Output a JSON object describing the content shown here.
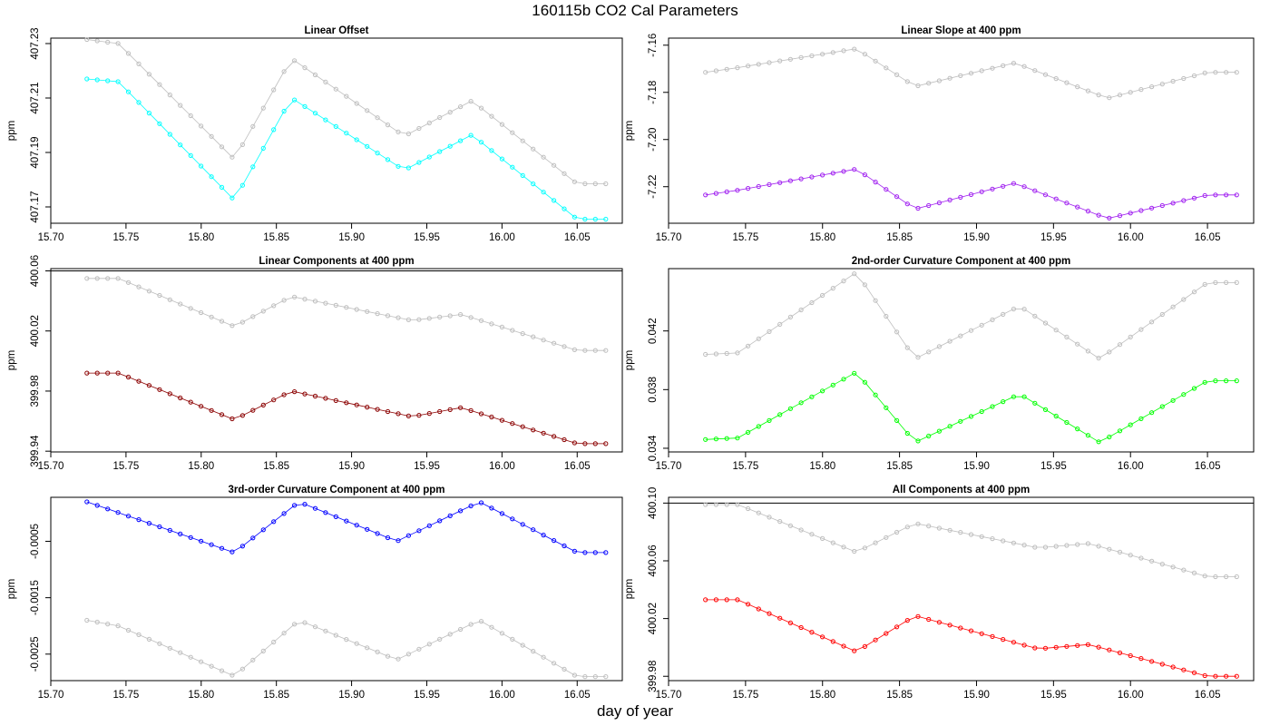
{
  "title": "160115b   CO2 Cal Parameters",
  "xlabel": "day of year",
  "chart_data": [
    {
      "type": "scatter",
      "title": "Linear Offset",
      "ylabel": "ppm",
      "xlim": [
        15.7,
        16.08
      ],
      "ylim": [
        407.164,
        407.232
      ],
      "xticks": [
        "15.70",
        "15.75",
        "15.80",
        "15.85",
        "15.90",
        "15.95",
        "16.00",
        "16.05"
      ],
      "yticks": [
        "407.17",
        "407.19",
        "407.21",
        "407.23"
      ],
      "hline": null,
      "series": [
        {
          "color": "#bebebe",
          "keypoints": [
            [
              15.724,
              407.2315
            ],
            [
              15.745,
              407.23
            ],
            [
              15.822,
              407.1875
            ],
            [
              15.86,
              407.2245
            ],
            [
              15.935,
              407.196
            ],
            [
              15.98,
              407.209
            ],
            [
              16.05,
              407.1785
            ],
            [
              16.068,
              407.1785
            ]
          ]
        },
        {
          "color": "#00ffff",
          "keypoints": [
            [
              15.724,
              407.217
            ],
            [
              15.745,
              407.216
            ],
            [
              15.822,
              407.1725
            ],
            [
              15.86,
              407.21
            ],
            [
              15.935,
              407.1835
            ],
            [
              15.98,
              407.1965
            ],
            [
              16.05,
              407.1655
            ],
            [
              16.068,
              407.1655
            ]
          ]
        }
      ]
    },
    {
      "type": "scatter",
      "title": "Linear Slope at 400 ppm",
      "ylabel": "ppm",
      "xlim": [
        15.7,
        16.08
      ],
      "ylim": [
        -7.2355,
        -7.157
      ],
      "xticks": [
        "15.70",
        "15.75",
        "15.80",
        "15.85",
        "15.90",
        "15.95",
        "16.00",
        "16.05"
      ],
      "yticks": [
        "-7.22",
        "-7.20",
        "-7.18",
        "-7.16"
      ],
      "hline": null,
      "series": [
        {
          "color": "#bebebe",
          "keypoints": [
            [
              15.724,
              -7.1715
            ],
            [
              15.745,
              -7.1695
            ],
            [
              15.822,
              -7.1615
            ],
            [
              15.86,
              -7.1775
            ],
            [
              15.925,
              -7.1675
            ],
            [
              15.985,
              -7.1825
            ],
            [
              16.05,
              -7.1715
            ],
            [
              16.068,
              -7.1715
            ]
          ]
        },
        {
          "color": "#a020f0",
          "keypoints": [
            [
              15.724,
              -7.2235
            ],
            [
              15.745,
              -7.2215
            ],
            [
              15.822,
              -7.2125
            ],
            [
              15.86,
              -7.2295
            ],
            [
              15.925,
              -7.2185
            ],
            [
              15.985,
              -7.2335
            ],
            [
              16.05,
              -7.2235
            ],
            [
              16.068,
              -7.2235
            ]
          ]
        }
      ]
    },
    {
      "type": "scatter",
      "title": "Linear Components at 400 ppm",
      "ylabel": "ppm",
      "xlim": [
        15.7,
        16.08
      ],
      "ylim": [
        399.9395,
        400.0615
      ],
      "xticks": [
        "15.70",
        "15.75",
        "15.80",
        "15.85",
        "15.90",
        "15.95",
        "16.00",
        "16.05"
      ],
      "yticks": [
        "399.94",
        "399.98",
        "400.02",
        "400.06"
      ],
      "hline": 400.06,
      "series": [
        {
          "color": "#bebebe",
          "keypoints": [
            [
              15.724,
              400.055
            ],
            [
              15.745,
              400.055
            ],
            [
              15.822,
              400.023
            ],
            [
              15.86,
              400.043
            ],
            [
              15.94,
              400.027
            ],
            [
              15.973,
              400.031
            ],
            [
              16.05,
              400.007
            ],
            [
              16.068,
              400.007
            ]
          ]
        },
        {
          "color": "#8b0000",
          "keypoints": [
            [
              15.724,
              399.992
            ],
            [
              15.745,
              399.992
            ],
            [
              15.822,
              399.961
            ],
            [
              15.86,
              399.98
            ],
            [
              15.94,
              399.963
            ],
            [
              15.973,
              399.969
            ],
            [
              16.05,
              399.945
            ],
            [
              16.068,
              399.945
            ]
          ]
        }
      ]
    },
    {
      "type": "scatter",
      "title": "2nd-order Curvature Component at 400 ppm",
      "ylabel": "ppm",
      "xlim": [
        15.7,
        16.08
      ],
      "ylim": [
        0.03375,
        0.04625
      ],
      "xticks": [
        "15.70",
        "15.75",
        "15.80",
        "15.85",
        "15.90",
        "15.95",
        "16.00",
        "16.05"
      ],
      "yticks": [
        "0.034",
        "0.038",
        "0.042"
      ],
      "hline": null,
      "series": [
        {
          "color": "#bebebe",
          "keypoints": [
            [
              15.724,
              0.0404
            ],
            [
              15.745,
              0.0405
            ],
            [
              15.822,
              0.046
            ],
            [
              15.86,
              0.0401
            ],
            [
              15.928,
              0.0437
            ],
            [
              15.98,
              0.0401
            ],
            [
              16.05,
              0.0453
            ],
            [
              16.068,
              0.0453
            ]
          ]
        },
        {
          "color": "#00ff00",
          "keypoints": [
            [
              15.724,
              0.0346
            ],
            [
              15.745,
              0.0347
            ],
            [
              15.822,
              0.0392
            ],
            [
              15.86,
              0.0344
            ],
            [
              15.928,
              0.0377
            ],
            [
              15.98,
              0.0344
            ],
            [
              16.05,
              0.0386
            ],
            [
              16.068,
              0.0386
            ]
          ]
        }
      ]
    },
    {
      "type": "scatter",
      "title": "3rd-order Curvature Component at 400 ppm",
      "ylabel": "ppm",
      "xlim": [
        15.7,
        16.08
      ],
      "ylim": [
        -0.00297,
        0.00028
      ],
      "xticks": [
        "15.70",
        "15.75",
        "15.80",
        "15.85",
        "15.90",
        "15.95",
        "16.00",
        "16.05"
      ],
      "yticks": [
        "-0.0025",
        "-0.0015",
        "-0.0005"
      ],
      "hline": null,
      "series": [
        {
          "color": "#bebebe",
          "keypoints": [
            [
              15.724,
              -0.0019
            ],
            [
              15.745,
              -0.002
            ],
            [
              15.822,
              -0.00289
            ],
            [
              15.865,
              -0.0019
            ],
            [
              15.93,
              -0.0026
            ],
            [
              15.985,
              -0.0019
            ],
            [
              16.05,
              -0.0029
            ],
            [
              16.068,
              -0.0029
            ]
          ]
        },
        {
          "color": "#0000ff",
          "keypoints": [
            [
              15.724,
              0.0002
            ],
            [
              15.735,
              0.0001
            ],
            [
              15.822,
              -0.0007
            ],
            [
              15.865,
              0.0002
            ],
            [
              15.93,
              -0.0005
            ],
            [
              15.985,
              0.0002
            ],
            [
              16.05,
              -0.0007
            ],
            [
              16.068,
              -0.0007
            ]
          ]
        }
      ]
    },
    {
      "type": "scatter",
      "title": "All Components at 400 ppm",
      "ylabel": "ppm",
      "xlim": [
        15.7,
        16.08
      ],
      "ylim": [
        399.977,
        400.104
      ],
      "xticks": [
        "15.70",
        "15.75",
        "15.80",
        "15.85",
        "15.90",
        "15.95",
        "16.00",
        "16.05"
      ],
      "yticks": [
        "399.98",
        "400.02",
        "400.06",
        "400.10"
      ],
      "hline": 400.1,
      "series": [
        {
          "color": "#bebebe",
          "keypoints": [
            [
              15.724,
              400.099
            ],
            [
              15.745,
              400.099
            ],
            [
              15.822,
              400.066
            ],
            [
              15.86,
              400.086
            ],
            [
              15.94,
              400.069
            ],
            [
              15.973,
              400.072
            ],
            [
              16.05,
              400.049
            ],
            [
              16.068,
              400.049
            ]
          ]
        },
        {
          "color": "#ff0000",
          "keypoints": [
            [
              15.724,
              400.033
            ],
            [
              15.745,
              400.033
            ],
            [
              15.822,
              399.997
            ],
            [
              15.86,
              400.022
            ],
            [
              15.94,
              399.999
            ],
            [
              15.973,
              400.002
            ],
            [
              16.05,
              399.98
            ],
            [
              16.068,
              399.98
            ]
          ]
        }
      ]
    }
  ]
}
